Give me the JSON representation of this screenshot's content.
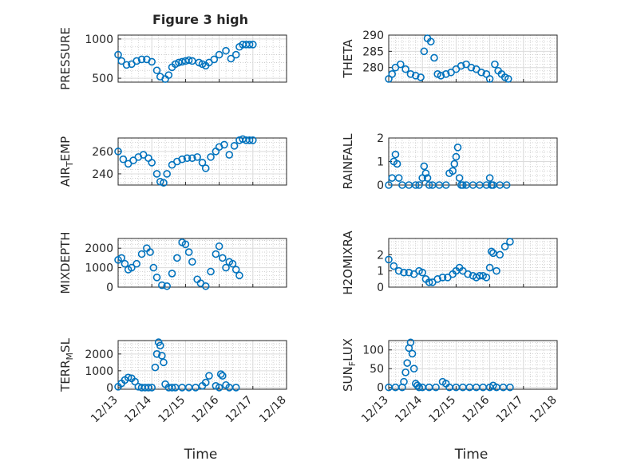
{
  "title": "Figure 3 high",
  "chart_data": [
    {
      "type": "scatter",
      "ylabel": "PRESSURE",
      "ylabel_sub": "",
      "ylabel_rest": "",
      "title": "Figure 3 high",
      "xlabel": "",
      "ylim": [
        450,
        1050
      ],
      "yticks": [
        500,
        1000
      ],
      "ytick_labels": [
        "500",
        "1000"
      ],
      "x": [
        0.0,
        0.1,
        0.25,
        0.4,
        0.55,
        0.7,
        0.85,
        1.0,
        1.15,
        1.25,
        1.4,
        1.5,
        1.6,
        1.7,
        1.8,
        1.9,
        2.0,
        2.1,
        2.2,
        2.4,
        2.5,
        2.6,
        2.7,
        2.85,
        3.0,
        3.2,
        3.35,
        3.5,
        3.6,
        3.7,
        3.8,
        3.9,
        4.0
      ],
      "y": [
        800,
        720,
        670,
        680,
        720,
        740,
        740,
        710,
        600,
        520,
        490,
        540,
        640,
        680,
        700,
        710,
        720,
        730,
        720,
        700,
        680,
        660,
        700,
        740,
        800,
        850,
        750,
        800,
        900,
        930,
        930,
        930,
        930
      ]
    },
    {
      "type": "scatter",
      "ylabel": "THETA",
      "ylabel_sub": "",
      "ylabel_rest": "",
      "title": "",
      "xlabel": "",
      "ylim": [
        275.5,
        290
      ],
      "yticks": [
        280,
        285,
        290
      ],
      "ytick_labels": [
        "280",
        "285",
        "290"
      ],
      "x": [
        0.0,
        0.1,
        0.2,
        0.35,
        0.5,
        0.65,
        0.8,
        0.95,
        1.05,
        1.15,
        1.25,
        1.35,
        1.45,
        1.55,
        1.7,
        1.85,
        2.0,
        2.15,
        2.3,
        2.45,
        2.6,
        2.75,
        2.9,
        3.0,
        3.15,
        3.25,
        3.35,
        3.45,
        3.55
      ],
      "y": [
        276.5,
        278,
        280,
        281,
        279.5,
        278,
        277.5,
        277,
        285,
        289,
        288,
        283,
        278,
        277.5,
        278,
        278.5,
        279.5,
        280.5,
        281,
        280,
        279.5,
        278.5,
        278,
        276.5,
        281,
        279,
        278,
        277,
        276.5
      ]
    },
    {
      "type": "scatter",
      "ylabel": "AIR",
      "ylabel_sub": "T",
      "ylabel_rest": "EMP",
      "title": "",
      "xlabel": "",
      "ylim": [
        230,
        272
      ],
      "yticks": [
        240,
        260
      ],
      "ytick_labels": [
        "240",
        "260"
      ],
      "x": [
        0.0,
        0.15,
        0.3,
        0.45,
        0.6,
        0.75,
        0.9,
        1.0,
        1.15,
        1.25,
        1.35,
        1.45,
        1.6,
        1.75,
        1.9,
        2.05,
        2.2,
        2.35,
        2.5,
        2.6,
        2.75,
        2.9,
        3.0,
        3.15,
        3.3,
        3.45,
        3.6,
        3.7,
        3.8,
        3.9,
        4.0
      ],
      "y": [
        260,
        253,
        249,
        252,
        255,
        257,
        254,
        250,
        240,
        233,
        232,
        240,
        248,
        251,
        253,
        254,
        254,
        255,
        250,
        245,
        255,
        260,
        264,
        266,
        257,
        265,
        270,
        271,
        270,
        270,
        270
      ]
    },
    {
      "type": "scatter",
      "ylabel": "RAINFALL",
      "ylabel_sub": "",
      "ylabel_rest": "",
      "title": "",
      "xlabel": "",
      "ylim": [
        0,
        2
      ],
      "yticks": [
        0,
        1,
        2
      ],
      "ytick_labels": [
        "0",
        "1",
        "2"
      ],
      "x": [
        0.0,
        0.1,
        0.15,
        0.2,
        0.25,
        0.3,
        0.4,
        0.6,
        0.8,
        0.9,
        1.0,
        1.05,
        1.1,
        1.15,
        1.2,
        1.3,
        1.5,
        1.7,
        1.8,
        1.9,
        1.95,
        2.0,
        2.05,
        2.1,
        2.15,
        2.2,
        2.3,
        2.5,
        2.7,
        2.9,
        3.0,
        3.05,
        3.1,
        3.3,
        3.5
      ],
      "y": [
        0,
        0.3,
        1.0,
        1.3,
        0.9,
        0.3,
        0,
        0,
        0,
        0,
        0.3,
        0.8,
        0.5,
        0.3,
        0,
        0,
        0,
        0,
        0.5,
        0.6,
        0.9,
        1.2,
        1.6,
        0.3,
        0,
        0,
        0,
        0,
        0,
        0,
        0.3,
        0,
        0,
        0,
        0
      ]
    },
    {
      "type": "scatter",
      "ylabel": "MIXDEPTH",
      "ylabel_sub": "",
      "ylabel_rest": "",
      "title": "",
      "xlabel": "",
      "ylim": [
        0,
        2500
      ],
      "yticks": [
        0,
        1000,
        2000
      ],
      "ytick_labels": [
        "0",
        "1000",
        "2000"
      ],
      "x": [
        0.0,
        0.1,
        0.2,
        0.3,
        0.4,
        0.55,
        0.7,
        0.85,
        0.95,
        1.05,
        1.15,
        1.3,
        1.45,
        1.6,
        1.75,
        1.9,
        2.0,
        2.1,
        2.2,
        2.35,
        2.45,
        2.6,
        2.75,
        2.9,
        3.0,
        3.1,
        3.2,
        3.3,
        3.4,
        3.5,
        3.6
      ],
      "y": [
        1400,
        1500,
        1200,
        900,
        1000,
        1200,
        1700,
        2000,
        1800,
        1000,
        500,
        100,
        50,
        700,
        1500,
        2300,
        2200,
        1800,
        1300,
        400,
        200,
        50,
        800,
        1700,
        2100,
        1500,
        1000,
        1300,
        1200,
        900,
        600
      ]
    },
    {
      "type": "scatter",
      "ylabel": "H2OMIXRA",
      "ylabel_sub": "",
      "ylabel_rest": "",
      "title": "",
      "xlabel": "",
      "ylim": [
        0,
        3
      ],
      "yticks": [
        0,
        1,
        2
      ],
      "ytick_labels": [
        "0",
        "1",
        "2"
      ],
      "x": [
        0.0,
        0.15,
        0.3,
        0.45,
        0.6,
        0.75,
        0.9,
        1.0,
        1.1,
        1.2,
        1.3,
        1.45,
        1.6,
        1.75,
        1.9,
        2.0,
        2.1,
        2.2,
        2.35,
        2.5,
        2.6,
        2.7,
        2.8,
        2.9,
        3.0,
        3.05,
        3.1,
        3.2,
        3.3,
        3.45,
        3.6
      ],
      "y": [
        1.7,
        1.3,
        1.0,
        0.9,
        0.9,
        0.8,
        1.0,
        0.9,
        0.5,
        0.3,
        0.3,
        0.5,
        0.6,
        0.6,
        0.8,
        1.0,
        1.2,
        1.0,
        0.8,
        0.7,
        0.6,
        0.7,
        0.7,
        0.6,
        1.2,
        2.2,
        2.1,
        1.0,
        2.0,
        2.5,
        2.8
      ]
    },
    {
      "type": "scatter",
      "ylabel": "TERR",
      "ylabel_sub": "M",
      "ylabel_rest": "SL",
      "title": "",
      "xlabel": "Time",
      "ylim": [
        -100,
        2800
      ],
      "yticks": [
        0,
        1000,
        2000
      ],
      "ytick_labels": [
        "0",
        "1000",
        "2000"
      ],
      "x": [
        0.0,
        0.1,
        0.2,
        0.3,
        0.4,
        0.5,
        0.6,
        0.7,
        0.8,
        0.9,
        1.0,
        1.1,
        1.15,
        1.2,
        1.25,
        1.3,
        1.35,
        1.4,
        1.5,
        1.6,
        1.7,
        1.9,
        2.1,
        2.3,
        2.5,
        2.6,
        2.7,
        2.9,
        3.0,
        3.05,
        3.1,
        3.2,
        3.3,
        3.5
      ],
      "y": [
        50,
        250,
        450,
        600,
        550,
        350,
        50,
        0,
        0,
        0,
        0,
        1200,
        2000,
        2700,
        2500,
        1900,
        1500,
        200,
        0,
        0,
        0,
        0,
        0,
        0,
        100,
        300,
        700,
        100,
        0,
        800,
        700,
        150,
        0,
        0
      ]
    },
    {
      "type": "scatter",
      "ylabel": "SUN",
      "ylabel_sub": "F",
      "ylabel_rest": "LUX",
      "title": "",
      "xlabel": "Time",
      "ylim": [
        -5,
        125
      ],
      "yticks": [
        0,
        50,
        100
      ],
      "ytick_labels": [
        "0",
        "50",
        "100"
      ],
      "x": [
        0.0,
        0.2,
        0.4,
        0.45,
        0.5,
        0.55,
        0.6,
        0.65,
        0.7,
        0.75,
        0.8,
        0.85,
        0.9,
        1.0,
        1.2,
        1.4,
        1.6,
        1.7,
        1.8,
        2.0,
        2.2,
        2.4,
        2.6,
        2.8,
        3.0,
        3.1,
        3.2,
        3.4,
        3.6
      ],
      "y": [
        0,
        0,
        0,
        15,
        40,
        65,
        105,
        120,
        90,
        50,
        10,
        5,
        0,
        0,
        0,
        0,
        15,
        10,
        0,
        0,
        0,
        0,
        0,
        0,
        0,
        5,
        0,
        0,
        0
      ]
    }
  ],
  "xaxis": {
    "xlim": [
      0,
      5
    ],
    "ticks": [
      0,
      1,
      2,
      3,
      4,
      5
    ],
    "tick_labels": [
      "12/13",
      "12/14",
      "12/15",
      "12/16",
      "12/17",
      "12/18"
    ]
  },
  "colors": {
    "marker": "#0072bd",
    "axes": "#262626",
    "grid": "#dcdcdc"
  }
}
